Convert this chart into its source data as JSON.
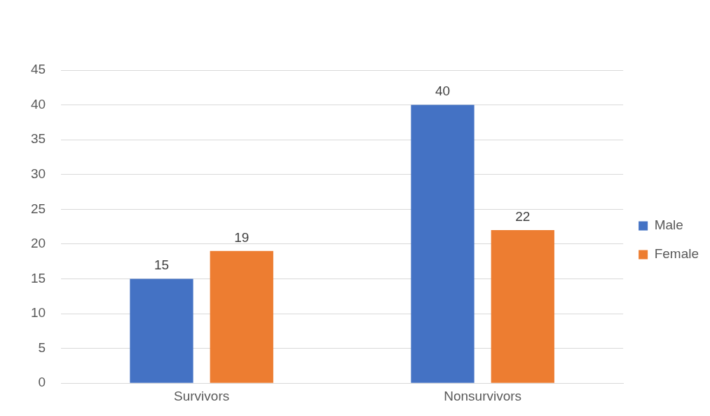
{
  "chart_data": {
    "type": "bar",
    "categories": [
      "Survivors",
      "Nonsurvivors"
    ],
    "series": [
      {
        "name": "Male",
        "color": "#4472c4",
        "values": [
          15,
          40
        ]
      },
      {
        "name": "Female",
        "color": "#ed7d31",
        "values": [
          19,
          22
        ]
      }
    ],
    "ylim": [
      0,
      45
    ],
    "yticks": [
      0,
      5,
      10,
      15,
      20,
      25,
      30,
      35,
      40,
      45
    ],
    "grid": "y",
    "legend": "right",
    "data_labels": true
  }
}
